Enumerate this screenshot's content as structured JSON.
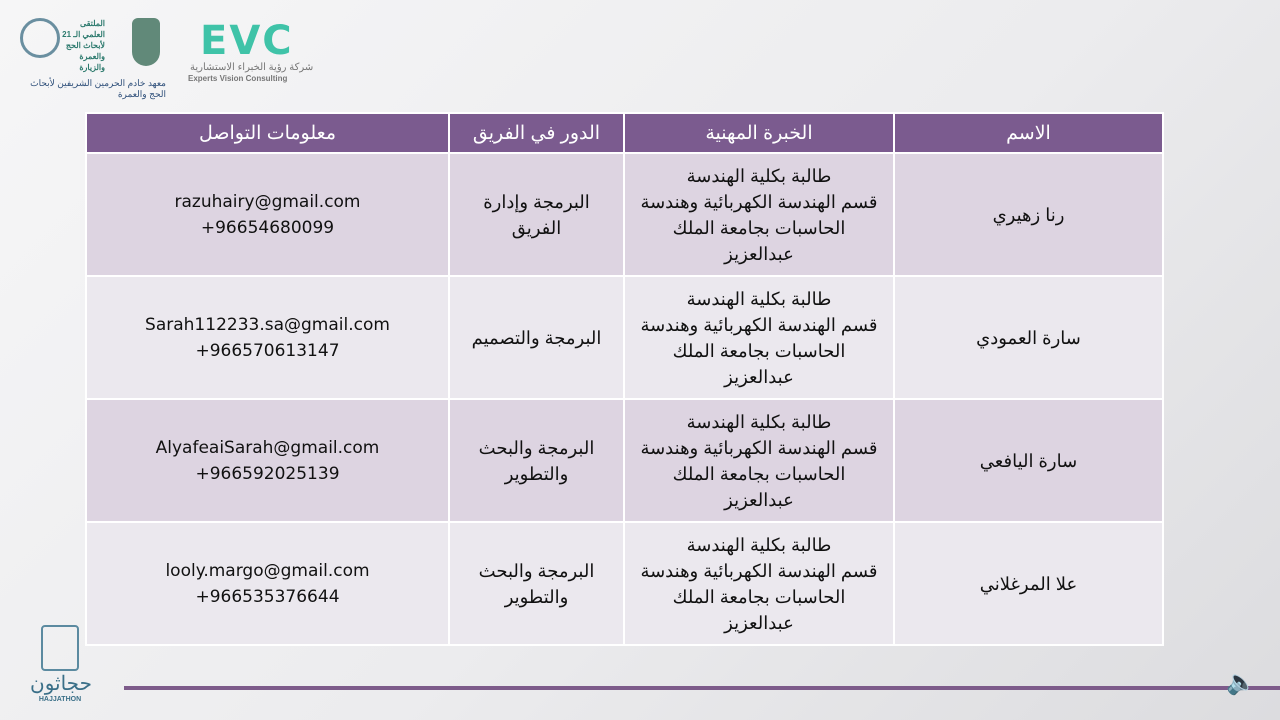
{
  "header": {
    "evc_logo": "EVC",
    "evc_arabic": "شركة رؤية الخبراء الاستشارية",
    "evc_english": "Experts Vision Consulting",
    "conference_logo": "الملتقى العلمي الـ 21 لأبحاث الحج والعمرة والزيارة",
    "institute_logo": "معهد خادم الحرمين الشريفين لأبحاث الحج والعمرة"
  },
  "table": {
    "headers": [
      "الاسم",
      "الخبرة المهنية",
      "الدور في الفريق",
      "معلومات التواصل"
    ],
    "rows": [
      {
        "name": "رنا زهيري",
        "experience": [
          "طالبة بكلية الهندسة",
          "قسم الهندسة الكهربائية وهندسة",
          "الحاسبات بجامعة الملك",
          "عبدالعزيز"
        ],
        "role": [
          "البرمجة وإدارة",
          "الفريق"
        ],
        "email": "razuhairy@gmail.com",
        "phone": "+96654680099"
      },
      {
        "name": "سارة العمودي",
        "experience": [
          "طالبة بكلية الهندسة",
          "قسم الهندسة الكهربائية وهندسة",
          "الحاسبات بجامعة الملك",
          "عبدالعزيز"
        ],
        "role": [
          "البرمجة والتصميم"
        ],
        "email": "Sarah112233.sa@gmail.com",
        "phone": "+966570613147"
      },
      {
        "name": "سارة اليافعي",
        "experience": [
          "طالبة بكلية الهندسة",
          "قسم الهندسة الكهربائية وهندسة",
          "الحاسبات بجامعة الملك",
          "عبدالعزيز"
        ],
        "role": [
          "البرمجة والبحث",
          "والتطوير"
        ],
        "email": "AlyafeaiSarah@gmail.com",
        "phone": "+966592025139"
      },
      {
        "name": "علا المرغلاني",
        "experience": [
          "طالبة بكلية الهندسة",
          "قسم الهندسة الكهربائية وهندسة",
          "الحاسبات بجامعة الملك",
          "عبدالعزيز"
        ],
        "role": [
          "البرمجة والبحث",
          "والتطوير"
        ],
        "email": "looly.margo@gmail.com",
        "phone": "+966535376644"
      }
    ]
  },
  "footer": {
    "hajjathon_arabic": "حجاثون",
    "hajjathon_english": "HAJJATHON",
    "accent_color": "#7b5b8f",
    "audio_icon": "speaker-icon"
  }
}
